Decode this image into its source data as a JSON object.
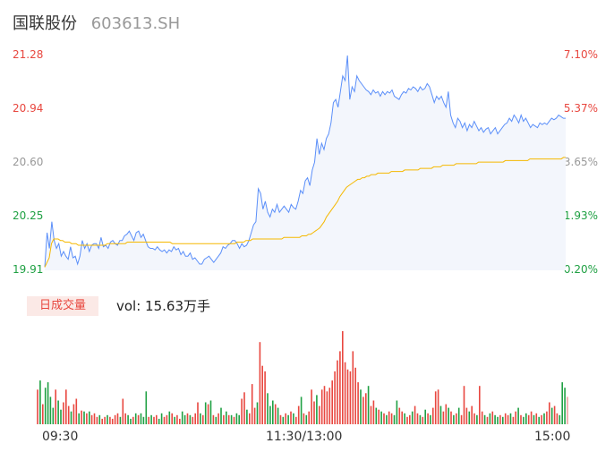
{
  "header": {
    "name": "国联股份",
    "code": "603613.SH"
  },
  "price_axis": {
    "left_labels": [
      "21.28",
      "20.94",
      "20.60",
      "20.25",
      "19.91"
    ],
    "right_labels": [
      "7.10%",
      "5.37%",
      "3.65%",
      "1.93%",
      "0.20%"
    ]
  },
  "volume": {
    "badge": "日成交量",
    "text": "vol: 15.63万手"
  },
  "time_axis": [
    "09:30",
    "11:30/13:00",
    "15:00"
  ],
  "colors": {
    "up": "#e8473f",
    "down": "#1fa043",
    "neutral": "#999999",
    "price_line": "#5b8ff9",
    "avg_line": "#f5b800",
    "area_fill": "#f3f6fc"
  },
  "chart_data": {
    "type": "line",
    "ylim": [
      19.91,
      21.28
    ],
    "series": [
      {
        "values": [
          19.93,
          20.15,
          20.05,
          20.22,
          20.1,
          20.05,
          20.08,
          20.0,
          20.03,
          20.0,
          19.98,
          20.06,
          19.99,
          20.0,
          19.95,
          20.0,
          20.1,
          20.05,
          20.08,
          20.03,
          20.07,
          20.08,
          20.08,
          20.05,
          20.12,
          20.06,
          20.07,
          20.05,
          20.09,
          20.1,
          20.08,
          20.07,
          20.1,
          20.1,
          20.13,
          20.14,
          20.16,
          20.13,
          20.1,
          20.15,
          20.16,
          20.12,
          20.14,
          20.1,
          20.06,
          20.05,
          20.05,
          20.04,
          20.06,
          20.04,
          20.03,
          20.04,
          20.02,
          20.04,
          20.03,
          20.06,
          20.04,
          20.05,
          20.01,
          20.03,
          20.0,
          20.0,
          20.02,
          19.98,
          19.99,
          19.97,
          19.95,
          19.95,
          19.98,
          19.99,
          20.0,
          19.98,
          19.96,
          19.98,
          20.0,
          20.02,
          20.06,
          20.05,
          20.07,
          20.08,
          20.1,
          20.1,
          20.08,
          20.05,
          20.08,
          20.06,
          20.07,
          20.1,
          20.15,
          20.2,
          20.22,
          20.43,
          20.4,
          20.3,
          20.35,
          20.28,
          20.25,
          20.3,
          20.28,
          20.33,
          20.28,
          20.3,
          20.32,
          20.3,
          20.28,
          20.33,
          20.31,
          20.3,
          20.35,
          20.42,
          20.4,
          20.48,
          20.5,
          20.45,
          20.55,
          20.6,
          20.75,
          20.65,
          20.72,
          20.68,
          20.75,
          20.78,
          20.85,
          20.98,
          21.0,
          20.95,
          21.05,
          21.15,
          21.12,
          21.28,
          21.0,
          21.08,
          21.05,
          21.15,
          21.12,
          21.1,
          21.08,
          21.06,
          21.05,
          21.03,
          21.06,
          21.04,
          21.05,
          21.02,
          21.05,
          21.03,
          21.05,
          21.04,
          21.06,
          21.02,
          21.01,
          21.0,
          21.03,
          21.05,
          21.04,
          21.07,
          21.06,
          21.08,
          21.07,
          21.05,
          21.08,
          21.06,
          21.07,
          21.1,
          21.08,
          21.03,
          20.98,
          21.02,
          21.0,
          21.02,
          20.98,
          20.95,
          21.05,
          20.9,
          20.85,
          20.82,
          20.88,
          20.86,
          20.82,
          20.85,
          20.8,
          20.84,
          20.82,
          20.86,
          20.83,
          20.8,
          20.82,
          20.79,
          20.81,
          20.82,
          20.78,
          20.8,
          20.82,
          20.78,
          20.8,
          20.82,
          20.84,
          20.85,
          20.88,
          20.86,
          20.9,
          20.88,
          20.85,
          20.9,
          20.86,
          20.88,
          20.85,
          20.82,
          20.84,
          20.83,
          20.82,
          20.85,
          20.84,
          20.85,
          20.84,
          20.86,
          20.88,
          20.87,
          20.88,
          20.9,
          20.89,
          20.88,
          20.88
        ]
      },
      {
        "values": [
          19.93,
          19.96,
          19.99,
          20.08,
          20.11,
          20.11,
          20.11,
          20.1,
          20.1,
          20.09,
          20.09,
          20.09,
          20.08,
          20.08,
          20.08,
          20.07,
          20.07,
          20.07,
          20.07,
          20.07,
          20.07,
          20.07,
          20.07,
          20.07,
          20.07,
          20.07,
          20.07,
          20.07,
          20.08,
          20.08,
          20.08,
          20.08,
          20.08,
          20.08,
          20.08,
          20.08,
          20.08,
          20.09,
          20.09,
          20.09,
          20.09,
          20.09,
          20.09,
          20.09,
          20.09,
          20.09,
          20.09,
          20.09,
          20.09,
          20.09,
          20.09,
          20.09,
          20.09,
          20.09,
          20.09,
          20.09,
          20.09,
          20.08,
          20.08,
          20.08,
          20.08,
          20.08,
          20.08,
          20.08,
          20.08,
          20.08,
          20.08,
          20.08,
          20.08,
          20.08,
          20.08,
          20.08,
          20.08,
          20.08,
          20.08,
          20.08,
          20.08,
          20.08,
          20.08,
          20.08,
          20.08,
          20.08,
          20.08,
          20.08,
          20.08,
          20.08,
          20.09,
          20.09,
          20.09,
          20.09,
          20.1,
          20.1,
          20.1,
          20.11,
          20.11,
          20.11,
          20.11,
          20.11,
          20.11,
          20.11,
          20.11,
          20.11,
          20.11,
          20.11,
          20.11,
          20.11,
          20.11,
          20.12,
          20.12,
          20.12,
          20.12,
          20.12,
          20.12,
          20.12,
          20.12,
          20.13,
          20.13,
          20.13,
          20.14,
          20.14,
          20.15,
          20.16,
          20.17,
          20.18,
          20.2,
          20.22,
          20.25,
          20.27,
          20.29,
          20.31,
          20.33,
          20.35,
          20.38,
          20.4,
          20.42,
          20.44,
          20.45,
          20.46,
          20.47,
          20.48,
          20.49,
          20.49,
          20.5,
          20.5,
          20.51,
          20.51,
          20.52,
          20.52,
          20.52,
          20.53,
          20.53,
          20.53,
          20.53,
          20.53,
          20.53,
          20.54,
          20.54,
          20.54,
          20.54,
          20.54,
          20.54,
          20.55,
          20.55,
          20.55,
          20.55,
          20.55,
          20.55,
          20.55,
          20.56,
          20.56,
          20.56,
          20.56,
          20.56,
          20.56,
          20.57,
          20.57,
          20.57,
          20.57,
          20.58,
          20.58,
          20.58,
          20.58,
          20.58,
          20.58,
          20.59,
          20.59,
          20.59,
          20.59,
          20.59,
          20.59,
          20.59,
          20.59,
          20.59,
          20.59,
          20.6,
          20.6,
          20.6,
          20.6,
          20.6,
          20.6,
          20.6,
          20.6,
          20.6,
          20.6,
          20.6,
          20.6,
          20.61,
          20.61,
          20.61,
          20.61,
          20.61,
          20.61,
          20.61,
          20.61,
          20.61,
          20.61,
          20.61,
          20.62,
          20.62,
          20.62,
          20.62,
          20.62,
          20.62,
          20.62,
          20.62,
          20.62,
          20.62,
          20.62,
          20.62,
          20.62,
          20.62,
          20.62,
          20.63,
          20.63
        ]
      }
    ],
    "volume_bars": [
      {
        "v": 38,
        "d": 1
      },
      {
        "v": 48,
        "d": 0
      },
      {
        "v": 22,
        "d": 1
      },
      {
        "v": 40,
        "d": 0
      },
      {
        "v": 46,
        "d": 0
      },
      {
        "v": 30,
        "d": 0
      },
      {
        "v": 18,
        "d": 0
      },
      {
        "v": 38,
        "d": 1
      },
      {
        "v": 26,
        "d": 0
      },
      {
        "v": 16,
        "d": 0
      },
      {
        "v": 24,
        "d": 1
      },
      {
        "v": 38,
        "d": 1
      },
      {
        "v": 20,
        "d": 1
      },
      {
        "v": 14,
        "d": 0
      },
      {
        "v": 22,
        "d": 1
      },
      {
        "v": 28,
        "d": 1
      },
      {
        "v": 12,
        "d": 0
      },
      {
        "v": 15,
        "d": 1
      },
      {
        "v": 14,
        "d": 0
      },
      {
        "v": 12,
        "d": 1
      },
      {
        "v": 14,
        "d": 0
      },
      {
        "v": 10,
        "d": 1
      },
      {
        "v": 12,
        "d": 1
      },
      {
        "v": 8,
        "d": 1
      },
      {
        "v": 10,
        "d": 0
      },
      {
        "v": 6,
        "d": 1
      },
      {
        "v": 8,
        "d": 1
      },
      {
        "v": 10,
        "d": 0
      },
      {
        "v": 8,
        "d": 1
      },
      {
        "v": 6,
        "d": 1
      },
      {
        "v": 10,
        "d": 1
      },
      {
        "v": 12,
        "d": 1
      },
      {
        "v": 8,
        "d": 0
      },
      {
        "v": 28,
        "d": 1
      },
      {
        "v": 12,
        "d": 1
      },
      {
        "v": 10,
        "d": 0
      },
      {
        "v": 6,
        "d": 0
      },
      {
        "v": 8,
        "d": 1
      },
      {
        "v": 12,
        "d": 0
      },
      {
        "v": 10,
        "d": 1
      },
      {
        "v": 12,
        "d": 0
      },
      {
        "v": 8,
        "d": 0
      },
      {
        "v": 36,
        "d": 0
      },
      {
        "v": 8,
        "d": 1
      },
      {
        "v": 10,
        "d": 0
      },
      {
        "v": 8,
        "d": 1
      },
      {
        "v": 10,
        "d": 1
      },
      {
        "v": 6,
        "d": 0
      },
      {
        "v": 12,
        "d": 0
      },
      {
        "v": 8,
        "d": 1
      },
      {
        "v": 10,
        "d": 1
      },
      {
        "v": 14,
        "d": 0
      },
      {
        "v": 12,
        "d": 1
      },
      {
        "v": 8,
        "d": 0
      },
      {
        "v": 10,
        "d": 1
      },
      {
        "v": 6,
        "d": 1
      },
      {
        "v": 14,
        "d": 0
      },
      {
        "v": 10,
        "d": 0
      },
      {
        "v": 12,
        "d": 1
      },
      {
        "v": 10,
        "d": 0
      },
      {
        "v": 8,
        "d": 1
      },
      {
        "v": 12,
        "d": 1
      },
      {
        "v": 24,
        "d": 1
      },
      {
        "v": 12,
        "d": 0
      },
      {
        "v": 10,
        "d": 1
      },
      {
        "v": 24,
        "d": 0
      },
      {
        "v": 22,
        "d": 1
      },
      {
        "v": 26,
        "d": 0
      },
      {
        "v": 10,
        "d": 1
      },
      {
        "v": 8,
        "d": 0
      },
      {
        "v": 12,
        "d": 1
      },
      {
        "v": 18,
        "d": 0
      },
      {
        "v": 10,
        "d": 1
      },
      {
        "v": 14,
        "d": 0
      },
      {
        "v": 10,
        "d": 1
      },
      {
        "v": 10,
        "d": 0
      },
      {
        "v": 8,
        "d": 1
      },
      {
        "v": 12,
        "d": 0
      },
      {
        "v": 10,
        "d": 0
      },
      {
        "v": 28,
        "d": 1
      },
      {
        "v": 35,
        "d": 1
      },
      {
        "v": 16,
        "d": 0
      },
      {
        "v": 12,
        "d": 1
      },
      {
        "v": 44,
        "d": 1
      },
      {
        "v": 18,
        "d": 1
      },
      {
        "v": 24,
        "d": 0
      },
      {
        "v": 90,
        "d": 1
      },
      {
        "v": 64,
        "d": 1
      },
      {
        "v": 58,
        "d": 1
      },
      {
        "v": 34,
        "d": 0
      },
      {
        "v": 20,
        "d": 0
      },
      {
        "v": 26,
        "d": 0
      },
      {
        "v": 22,
        "d": 1
      },
      {
        "v": 18,
        "d": 0
      },
      {
        "v": 10,
        "d": 1
      },
      {
        "v": 8,
        "d": 0
      },
      {
        "v": 12,
        "d": 1
      },
      {
        "v": 10,
        "d": 0
      },
      {
        "v": 14,
        "d": 1
      },
      {
        "v": 12,
        "d": 0
      },
      {
        "v": 8,
        "d": 1
      },
      {
        "v": 20,
        "d": 1
      },
      {
        "v": 30,
        "d": 0
      },
      {
        "v": 12,
        "d": 1
      },
      {
        "v": 10,
        "d": 0
      },
      {
        "v": 14,
        "d": 1
      },
      {
        "v": 38,
        "d": 1
      },
      {
        "v": 25,
        "d": 1
      },
      {
        "v": 32,
        "d": 0
      },
      {
        "v": 20,
        "d": 1
      },
      {
        "v": 38,
        "d": 1
      },
      {
        "v": 42,
        "d": 1
      },
      {
        "v": 36,
        "d": 1
      },
      {
        "v": 40,
        "d": 1
      },
      {
        "v": 48,
        "d": 1
      },
      {
        "v": 58,
        "d": 1
      },
      {
        "v": 70,
        "d": 1
      },
      {
        "v": 80,
        "d": 1
      },
      {
        "v": 102,
        "d": 1
      },
      {
        "v": 68,
        "d": 1
      },
      {
        "v": 60,
        "d": 1
      },
      {
        "v": 58,
        "d": 1
      },
      {
        "v": 80,
        "d": 1
      },
      {
        "v": 62,
        "d": 1
      },
      {
        "v": 46,
        "d": 1
      },
      {
        "v": 38,
        "d": 0
      },
      {
        "v": 30,
        "d": 1
      },
      {
        "v": 34,
        "d": 1
      },
      {
        "v": 42,
        "d": 0
      },
      {
        "v": 20,
        "d": 1
      },
      {
        "v": 26,
        "d": 1
      },
      {
        "v": 18,
        "d": 0
      },
      {
        "v": 16,
        "d": 1
      },
      {
        "v": 14,
        "d": 0
      },
      {
        "v": 12,
        "d": 1
      },
      {
        "v": 10,
        "d": 0
      },
      {
        "v": 14,
        "d": 1
      },
      {
        "v": 12,
        "d": 1
      },
      {
        "v": 10,
        "d": 0
      },
      {
        "v": 26,
        "d": 0
      },
      {
        "v": 18,
        "d": 1
      },
      {
        "v": 14,
        "d": 1
      },
      {
        "v": 12,
        "d": 0
      },
      {
        "v": 8,
        "d": 1
      },
      {
        "v": 10,
        "d": 1
      },
      {
        "v": 14,
        "d": 0
      },
      {
        "v": 20,
        "d": 1
      },
      {
        "v": 12,
        "d": 1
      },
      {
        "v": 10,
        "d": 0
      },
      {
        "v": 8,
        "d": 1
      },
      {
        "v": 16,
        "d": 0
      },
      {
        "v": 12,
        "d": 1
      },
      {
        "v": 10,
        "d": 0
      },
      {
        "v": 18,
        "d": 1
      },
      {
        "v": 36,
        "d": 1
      },
      {
        "v": 38,
        "d": 1
      },
      {
        "v": 20,
        "d": 0
      },
      {
        "v": 14,
        "d": 1
      },
      {
        "v": 22,
        "d": 1
      },
      {
        "v": 18,
        "d": 0
      },
      {
        "v": 14,
        "d": 1
      },
      {
        "v": 10,
        "d": 0
      },
      {
        "v": 12,
        "d": 1
      },
      {
        "v": 18,
        "d": 0
      },
      {
        "v": 10,
        "d": 1
      },
      {
        "v": 42,
        "d": 1
      },
      {
        "v": 18,
        "d": 1
      },
      {
        "v": 14,
        "d": 0
      },
      {
        "v": 20,
        "d": 1
      },
      {
        "v": 12,
        "d": 1
      },
      {
        "v": 10,
        "d": 0
      },
      {
        "v": 42,
        "d": 1
      },
      {
        "v": 14,
        "d": 1
      },
      {
        "v": 10,
        "d": 0
      },
      {
        "v": 8,
        "d": 1
      },
      {
        "v": 12,
        "d": 0
      },
      {
        "v": 14,
        "d": 1
      },
      {
        "v": 10,
        "d": 0
      },
      {
        "v": 8,
        "d": 0
      },
      {
        "v": 10,
        "d": 1
      },
      {
        "v": 8,
        "d": 0
      },
      {
        "v": 12,
        "d": 1
      },
      {
        "v": 10,
        "d": 1
      },
      {
        "v": 12,
        "d": 0
      },
      {
        "v": 8,
        "d": 1
      },
      {
        "v": 14,
        "d": 1
      },
      {
        "v": 18,
        "d": 0
      },
      {
        "v": 10,
        "d": 1
      },
      {
        "v": 8,
        "d": 0
      },
      {
        "v": 12,
        "d": 0
      },
      {
        "v": 10,
        "d": 1
      },
      {
        "v": 14,
        "d": 1
      },
      {
        "v": 10,
        "d": 0
      },
      {
        "v": 12,
        "d": 1
      },
      {
        "v": 8,
        "d": 0
      },
      {
        "v": 10,
        "d": 1
      },
      {
        "v": 12,
        "d": 0
      },
      {
        "v": 14,
        "d": 1
      },
      {
        "v": 24,
        "d": 1
      },
      {
        "v": 18,
        "d": 0
      },
      {
        "v": 20,
        "d": 1
      },
      {
        "v": 12,
        "d": 1
      },
      {
        "v": 10,
        "d": 0
      },
      {
        "v": 46,
        "d": 0
      },
      {
        "v": 40,
        "d": 0
      },
      {
        "v": 30,
        "d": -1
      }
    ]
  }
}
